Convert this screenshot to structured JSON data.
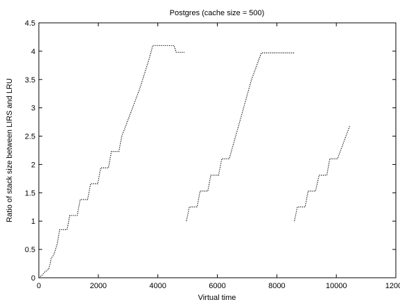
{
  "chart_data": {
    "type": "line",
    "title": "Postgres (cache size = 500)",
    "xlabel": "Virtual time",
    "ylabel": "Ratio of stack size between LIRS and LRU",
    "xlim": [
      0,
      12000
    ],
    "ylim": [
      0,
      4.5
    ],
    "xticks": [
      0,
      2000,
      4000,
      6000,
      8000,
      10000,
      12000
    ],
    "yticks": [
      0,
      0.5,
      1,
      1.5,
      2,
      2.5,
      3,
      3.5,
      4,
      4.5
    ],
    "x_tick_labels": [
      "0",
      "2000",
      "4000",
      "6000",
      "8000",
      "10000",
      "12000"
    ],
    "y_tick_labels": [
      "0",
      "0.5",
      "1",
      "1.5",
      "2",
      "2.5",
      "3",
      "3.5",
      "4",
      "4.5"
    ],
    "grid": false,
    "legend": "none",
    "color": "#000000",
    "series": [
      {
        "segments": [
          [
            [
              0,
              0
            ],
            [
              120,
              0.05
            ],
            [
              200,
              0.1
            ],
            [
              330,
              0.15
            ],
            [
              380,
              0.25
            ],
            [
              420,
              0.35
            ],
            [
              500,
              0.4
            ],
            [
              620,
              0.6
            ],
            [
              700,
              0.85
            ],
            [
              950,
              0.85
            ],
            [
              1040,
              1.1
            ],
            [
              1290,
              1.1
            ],
            [
              1390,
              1.38
            ],
            [
              1640,
              1.38
            ],
            [
              1740,
              1.66
            ],
            [
              1980,
              1.66
            ],
            [
              2080,
              1.94
            ],
            [
              2340,
              1.94
            ],
            [
              2440,
              2.23
            ],
            [
              2690,
              2.23
            ],
            [
              2790,
              2.5
            ],
            [
              3080,
              2.9
            ],
            [
              3400,
              3.35
            ],
            [
              3700,
              3.85
            ],
            [
              3830,
              4.1
            ],
            [
              4540,
              4.1
            ],
            [
              4620,
              3.98
            ],
            [
              4890,
              3.98
            ]
          ],
          [
            [
              4960,
              1.0
            ],
            [
              5060,
              1.25
            ],
            [
              5320,
              1.25
            ],
            [
              5420,
              1.53
            ],
            [
              5680,
              1.53
            ],
            [
              5780,
              1.81
            ],
            [
              6040,
              1.81
            ],
            [
              6150,
              2.1
            ],
            [
              6400,
              2.1
            ],
            [
              6750,
              2.75
            ],
            [
              7150,
              3.5
            ],
            [
              7480,
              3.97
            ],
            [
              8590,
              3.97
            ]
          ],
          [
            [
              8590,
              1.0
            ],
            [
              8690,
              1.25
            ],
            [
              8950,
              1.25
            ],
            [
              9050,
              1.53
            ],
            [
              9300,
              1.53
            ],
            [
              9420,
              1.81
            ],
            [
              9680,
              1.81
            ],
            [
              9780,
              2.1
            ],
            [
              10040,
              2.1
            ],
            [
              10450,
              2.68
            ]
          ]
        ]
      }
    ]
  }
}
